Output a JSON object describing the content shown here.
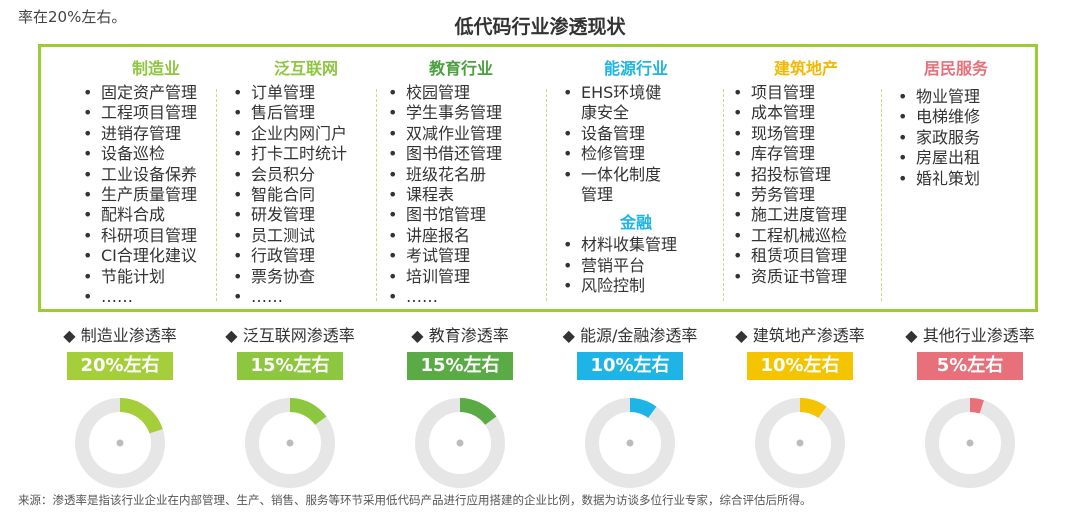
{
  "top_fragment": "率在20%左右。",
  "title": "低代码行业渗透现状",
  "colors": {
    "frame": "#9acd32",
    "donut_track": "#e6e6e6",
    "donut_center": "#bcbcbc"
  },
  "columns": [
    {
      "title": "制造业",
      "color": "#8dc63f",
      "items": [
        "固定资产管理",
        "工程项目管理",
        "进销存管理",
        "设备巡检",
        "工业设备保养",
        "生产质量管理",
        "配料合成",
        "科研项目管理",
        "CI合理化建议",
        "节能计划",
        "……"
      ]
    },
    {
      "title": "泛互联网",
      "color": "#8dc63f",
      "items": [
        "订单管理",
        "售后管理",
        "企业内网门户",
        "打卡工时统计",
        "会员积分",
        "智能合同",
        "研发管理",
        "员工测试",
        "行政管理",
        "票务协查",
        "……"
      ]
    },
    {
      "title": "教育行业",
      "color": "#4aa03f",
      "items": [
        "校园管理",
        "学生事务管理",
        "双减作业管理",
        "图书借还管理",
        "班级花名册",
        "课程表",
        "图书馆管理",
        "讲座报名",
        "考试管理",
        "培训管理",
        "……"
      ]
    },
    {
      "title": "能源行业",
      "color": "#1eb4e6",
      "items": [
        "EHS环境健",
        "康安全",
        "设备管理",
        "检修管理",
        "一体化制度",
        "管理"
      ],
      "sub_title": "金融",
      "sub_items": [
        "材料收集管理",
        "营销平台",
        "风险控制"
      ]
    },
    {
      "title": "建筑地产",
      "color": "#f5b800",
      "items": [
        "项目管理",
        "成本管理",
        "现场管理",
        "库存管理",
        "招投标管理",
        "劳务管理",
        "施工进度管理",
        "工程机械巡检",
        "租赁项目管理",
        "资质证书管理"
      ]
    },
    {
      "title": "居民服务",
      "color": "#e8707a",
      "items": [
        "物业管理",
        "电梯维修",
        "家政服务",
        "房屋出租",
        "婚礼策划"
      ]
    }
  ],
  "rates": [
    {
      "label": "◆ 制造业渗透率",
      "badge": "20%左右"
    },
    {
      "label": "◆ 泛互联网渗透率",
      "badge": "15%左右"
    },
    {
      "label": "◆ 教育渗透率",
      "badge": "15%左右"
    },
    {
      "label": "◆ 能源/金融渗透率",
      "badge": "10%左右"
    },
    {
      "label": "◆ 建筑地产渗透率",
      "badge": "10%左右"
    },
    {
      "label": "◆ 其他行业渗透率",
      "badge": "5%左右"
    }
  ],
  "chart_data": {
    "type": "pie",
    "categories": [
      "制造业",
      "泛互联网",
      "教育",
      "能源/金融",
      "建筑地产",
      "其他行业"
    ],
    "values": [
      20,
      15,
      15,
      10,
      10,
      5
    ],
    "colors": [
      "#a5cf3a",
      "#8dc63f",
      "#5aab46",
      "#1eb4e6",
      "#f5c400",
      "#e8707a"
    ],
    "unit": "%"
  },
  "source": "来源：渗透率是指该行业企业在内部管理、生产、销售、服务等环节采用低代码产品进行应用搭建的企业比例，数据为访谈多位行业专家，综合评估后所得。"
}
